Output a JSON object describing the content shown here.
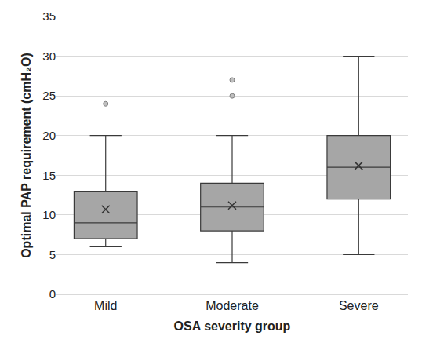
{
  "chart_data": {
    "type": "box",
    "x_label": "OSA severity group",
    "y_label": "Optimal PAP requirement (cmH₂O)",
    "categories": [
      "Mild",
      "Moderate",
      "Severe"
    ],
    "lowerfence": [
      6,
      4,
      5
    ],
    "q1": [
      7,
      8,
      12
    ],
    "median": [
      9,
      11,
      16
    ],
    "q3": [
      13,
      14,
      20
    ],
    "upperfence": [
      20,
      20,
      30
    ],
    "mean": [
      10.7,
      11.2,
      16.2
    ],
    "outliers": [
      [
        24
      ],
      [
        25,
        27
      ],
      []
    ],
    "color": "#a6a6a6",
    "ylim": [
      0,
      35
    ],
    "yticks": [
      0,
      5,
      10,
      15,
      20,
      25,
      30,
      35
    ],
    "grid": true
  }
}
